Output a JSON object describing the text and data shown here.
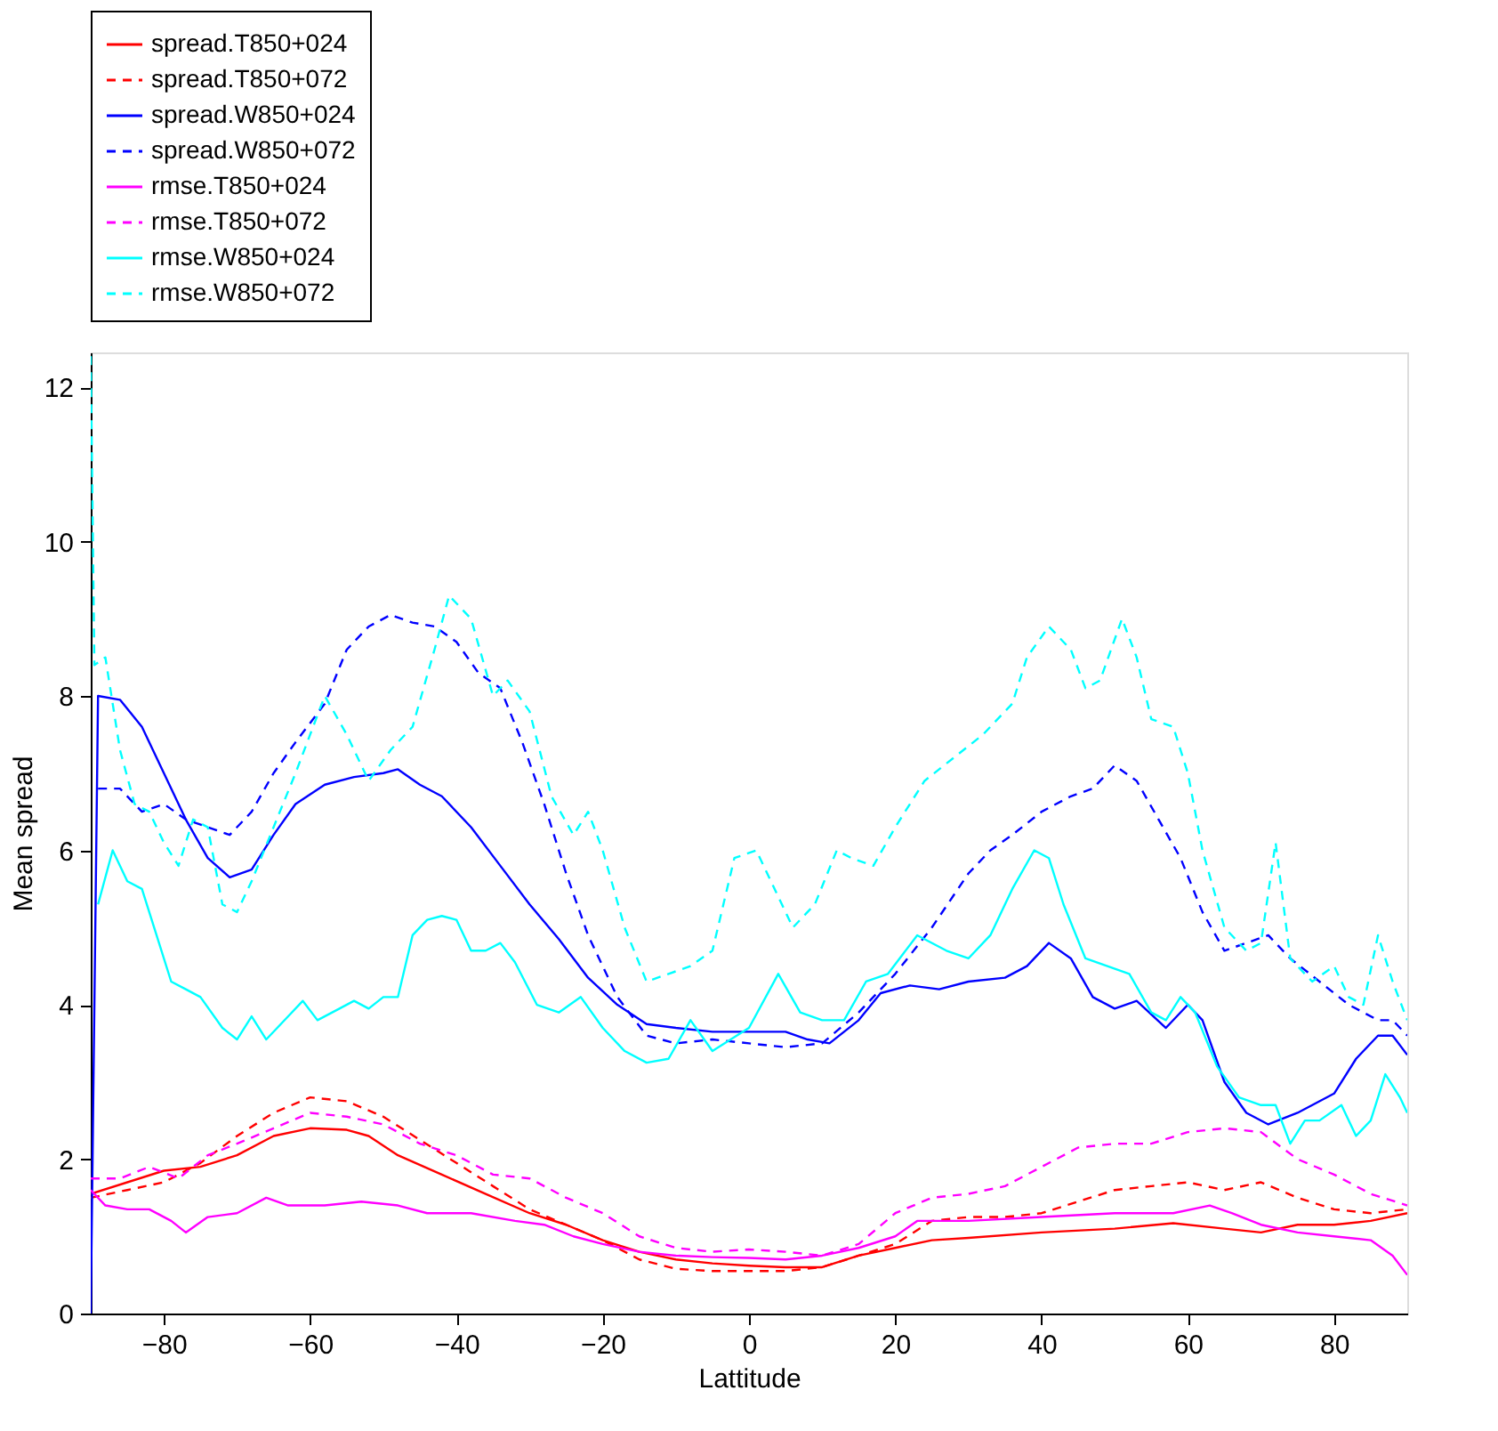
{
  "chart_data": {
    "type": "line",
    "xlabel": "Lattitude",
    "ylabel": "Mean spread",
    "xlim": [
      -90,
      90
    ],
    "ylim": [
      0,
      12.45
    ],
    "xticks": [
      -80,
      -60,
      -40,
      -20,
      0,
      20,
      40,
      60,
      80
    ],
    "yticks": [
      0,
      2,
      4,
      6,
      8,
      10,
      12
    ],
    "grid": false,
    "legend": "top",
    "marker": "none",
    "series": [
      {
        "name": "spread.T850+024",
        "color": "#ff0000",
        "line_style": "solid",
        "x": [
          -90,
          -80,
          -75,
          -70,
          -65,
          -60,
          -55,
          -52,
          -48,
          -42,
          -36,
          -30,
          -25,
          -20,
          -15,
          -10,
          -5,
          0,
          5,
          10,
          15,
          20,
          25,
          30,
          40,
          50,
          58,
          65,
          70,
          75,
          80,
          85,
          90
        ],
        "values": [
          1.55,
          1.85,
          1.9,
          2.05,
          2.3,
          2.4,
          2.38,
          2.3,
          2.05,
          1.8,
          1.55,
          1.3,
          1.15,
          0.95,
          0.8,
          0.7,
          0.65,
          0.62,
          0.6,
          0.6,
          0.75,
          0.85,
          0.95,
          0.98,
          1.05,
          1.1,
          1.17,
          1.1,
          1.05,
          1.15,
          1.15,
          1.2,
          1.3
        ]
      },
      {
        "name": "spread.T850+072",
        "color": "#ff0000",
        "line_style": "dashed",
        "x": [
          -90,
          -85,
          -80,
          -75,
          -70,
          -65,
          -60,
          -55,
          -50,
          -45,
          -40,
          -35,
          -30,
          -25,
          -20,
          -15,
          -10,
          -5,
          0,
          5,
          10,
          15,
          20,
          25,
          30,
          35,
          40,
          45,
          50,
          55,
          60,
          65,
          70,
          75,
          80,
          85,
          90
        ],
        "values": [
          1.5,
          1.6,
          1.7,
          1.95,
          2.3,
          2.6,
          2.8,
          2.75,
          2.55,
          2.25,
          1.95,
          1.65,
          1.35,
          1.15,
          0.95,
          0.7,
          0.58,
          0.55,
          0.55,
          0.55,
          0.6,
          0.75,
          0.9,
          1.2,
          1.25,
          1.25,
          1.3,
          1.45,
          1.6,
          1.65,
          1.7,
          1.6,
          1.7,
          1.5,
          1.35,
          1.3,
          1.35
        ]
      },
      {
        "name": "spread.W850+024",
        "color": "#0000ff",
        "line_style": "solid",
        "x": [
          -90,
          -89,
          -86,
          -83,
          -80,
          -77,
          -74,
          -71,
          -68,
          -65,
          -62,
          -58,
          -54,
          -50,
          -48,
          -45,
          -42,
          -38,
          -34,
          -30,
          -26,
          -22,
          -18,
          -14,
          -10,
          -5,
          0,
          5,
          8,
          11,
          15,
          18,
          22,
          26,
          30,
          35,
          38,
          41,
          44,
          47,
          50,
          53,
          57,
          60,
          62,
          65,
          68,
          71,
          75,
          80,
          83,
          86,
          88,
          90
        ],
        "values": [
          0,
          8.0,
          7.95,
          7.6,
          7.0,
          6.4,
          5.9,
          5.65,
          5.75,
          6.2,
          6.6,
          6.85,
          6.95,
          7.0,
          7.05,
          6.85,
          6.7,
          6.3,
          5.8,
          5.3,
          4.85,
          4.35,
          4.0,
          3.75,
          3.7,
          3.65,
          3.65,
          3.65,
          3.55,
          3.5,
          3.8,
          4.15,
          4.25,
          4.2,
          4.3,
          4.35,
          4.5,
          4.8,
          4.6,
          4.1,
          3.95,
          4.05,
          3.7,
          4.0,
          3.8,
          3.0,
          2.6,
          2.45,
          2.6,
          2.85,
          3.3,
          3.6,
          3.6,
          3.35
        ]
      },
      {
        "name": "spread.W850+072",
        "color": "#0000ff",
        "line_style": "dashed",
        "x": [
          -89,
          -86,
          -83,
          -80,
          -77,
          -74,
          -71,
          -68,
          -65,
          -62,
          -58,
          -55,
          -52,
          -49,
          -46,
          -43,
          -40,
          -37,
          -34,
          -31,
          -28,
          -25,
          -22,
          -18,
          -14,
          -10,
          -5,
          0,
          5,
          10,
          15,
          20,
          25,
          30,
          33,
          36,
          40,
          44,
          47,
          50,
          53,
          56,
          59,
          62,
          65,
          68,
          71,
          74,
          78,
          82,
          86,
          88,
          90
        ],
        "values": [
          6.8,
          6.8,
          6.5,
          6.6,
          6.4,
          6.3,
          6.2,
          6.5,
          7.0,
          7.4,
          7.9,
          8.6,
          8.9,
          9.05,
          8.95,
          8.9,
          8.7,
          8.3,
          8.1,
          7.4,
          6.6,
          5.7,
          4.9,
          4.1,
          3.6,
          3.5,
          3.55,
          3.5,
          3.45,
          3.5,
          3.9,
          4.4,
          5.0,
          5.7,
          6.0,
          6.2,
          6.5,
          6.7,
          6.8,
          7.1,
          6.9,
          6.4,
          5.9,
          5.2,
          4.7,
          4.8,
          4.9,
          4.6,
          4.3,
          4.0,
          3.8,
          3.8,
          3.6
        ]
      },
      {
        "name": "rmse.T850+024",
        "color": "#ff00ff",
        "line_style": "solid",
        "x": [
          -90,
          -88,
          -85,
          -82,
          -79,
          -77,
          -74,
          -70,
          -66,
          -63,
          -58,
          -53,
          -48,
          -44,
          -38,
          -32,
          -28,
          -24,
          -20,
          -15,
          -10,
          -5,
          0,
          5,
          10,
          15,
          20,
          23,
          30,
          40,
          50,
          58,
          63,
          66,
          70,
          75,
          80,
          85,
          88,
          90
        ],
        "values": [
          1.6,
          1.4,
          1.35,
          1.35,
          1.2,
          1.05,
          1.25,
          1.3,
          1.5,
          1.4,
          1.4,
          1.45,
          1.4,
          1.3,
          1.3,
          1.2,
          1.15,
          1.0,
          0.9,
          0.8,
          0.75,
          0.73,
          0.72,
          0.7,
          0.75,
          0.85,
          1.0,
          1.2,
          1.2,
          1.25,
          1.3,
          1.3,
          1.4,
          1.3,
          1.15,
          1.05,
          1.0,
          0.95,
          0.75,
          0.5
        ]
      },
      {
        "name": "rmse.T850+072",
        "color": "#ff00ff",
        "line_style": "dashed",
        "x": [
          -90,
          -86,
          -82,
          -78,
          -74,
          -70,
          -65,
          -60,
          -55,
          -50,
          -45,
          -40,
          -35,
          -30,
          -25,
          -20,
          -15,
          -10,
          -5,
          0,
          5,
          10,
          15,
          20,
          25,
          30,
          35,
          40,
          45,
          50,
          55,
          60,
          65,
          70,
          75,
          80,
          85,
          90
        ],
        "values": [
          1.75,
          1.75,
          1.9,
          1.75,
          2.05,
          2.2,
          2.4,
          2.6,
          2.55,
          2.45,
          2.2,
          2.05,
          1.8,
          1.75,
          1.5,
          1.3,
          1.0,
          0.85,
          0.8,
          0.83,
          0.8,
          0.75,
          0.9,
          1.3,
          1.5,
          1.55,
          1.65,
          1.9,
          2.15,
          2.2,
          2.2,
          2.35,
          2.4,
          2.35,
          2.0,
          1.8,
          1.55,
          1.4
        ]
      },
      {
        "name": "rmse.W850+024",
        "color": "#00ffff",
        "line_style": "solid",
        "x": [
          -89,
          -87,
          -85,
          -83,
          -81,
          -79,
          -77,
          -75,
          -72,
          -70,
          -68,
          -66,
          -63,
          -61,
          -59,
          -56,
          -54,
          -52,
          -50,
          -48,
          -46,
          -44,
          -42,
          -40,
          -38,
          -36,
          -34,
          -32,
          -29,
          -26,
          -23,
          -20,
          -17,
          -14,
          -11,
          -8,
          -5,
          0,
          4,
          7,
          10,
          13,
          16,
          19,
          23,
          27,
          30,
          33,
          36,
          39,
          41,
          43,
          46,
          49,
          52,
          55,
          57,
          59,
          61,
          64,
          67,
          70,
          72,
          74,
          76,
          78,
          81,
          83,
          85,
          87,
          89,
          90
        ],
        "values": [
          5.3,
          6.0,
          5.6,
          5.5,
          4.9,
          4.3,
          4.2,
          4.1,
          3.7,
          3.55,
          3.85,
          3.55,
          3.85,
          4.05,
          3.8,
          3.95,
          4.05,
          3.95,
          4.1,
          4.1,
          4.9,
          5.1,
          5.15,
          5.1,
          4.7,
          4.7,
          4.8,
          4.55,
          4.0,
          3.9,
          4.1,
          3.7,
          3.4,
          3.25,
          3.3,
          3.8,
          3.4,
          3.7,
          4.4,
          3.9,
          3.8,
          3.8,
          4.3,
          4.4,
          4.9,
          4.7,
          4.6,
          4.9,
          5.5,
          6.0,
          5.9,
          5.3,
          4.6,
          4.5,
          4.4,
          3.9,
          3.8,
          4.1,
          3.9,
          3.2,
          2.8,
          2.7,
          2.7,
          2.2,
          2.5,
          2.5,
          2.7,
          2.3,
          2.5,
          3.1,
          2.8,
          2.6
        ]
      },
      {
        "name": "rmse.W850+072",
        "color": "#00ffff",
        "line_style": "dashed",
        "x": [
          -90,
          -89.5,
          -88,
          -86,
          -84,
          -82,
          -80,
          -78,
          -76,
          -74,
          -72,
          -70,
          -68,
          -65,
          -62,
          -60,
          -58,
          -55,
          -52,
          -49,
          -46,
          -43,
          -41,
          -38,
          -35,
          -33,
          -30,
          -27,
          -24,
          -22,
          -20,
          -17,
          -14,
          -11,
          -8,
          -5,
          -2,
          1,
          3,
          6,
          9,
          12,
          14,
          17,
          20,
          24,
          28,
          32,
          36,
          38,
          41,
          44,
          46,
          48,
          51,
          53,
          55,
          58,
          60,
          62,
          65,
          68,
          70,
          72,
          74,
          77,
          80,
          82,
          84,
          86,
          88,
          90
        ],
        "values": [
          12.4,
          8.4,
          8.5,
          7.3,
          6.6,
          6.5,
          6.1,
          5.8,
          6.4,
          6.3,
          5.3,
          5.2,
          5.6,
          6.3,
          7.0,
          7.5,
          8.0,
          7.5,
          6.9,
          7.3,
          7.6,
          8.6,
          9.3,
          9.0,
          8.0,
          8.2,
          7.8,
          6.7,
          6.2,
          6.5,
          6.0,
          5.0,
          4.3,
          4.4,
          4.5,
          4.7,
          5.9,
          6.0,
          5.6,
          5.0,
          5.3,
          6.0,
          5.9,
          5.8,
          6.3,
          6.9,
          7.2,
          7.5,
          7.9,
          8.5,
          8.9,
          8.6,
          8.1,
          8.2,
          9.0,
          8.5,
          7.7,
          7.6,
          7.0,
          6.0,
          5.0,
          4.7,
          4.8,
          6.1,
          4.6,
          4.3,
          4.5,
          4.1,
          4.0,
          4.9,
          4.3,
          3.8
        ]
      }
    ]
  }
}
